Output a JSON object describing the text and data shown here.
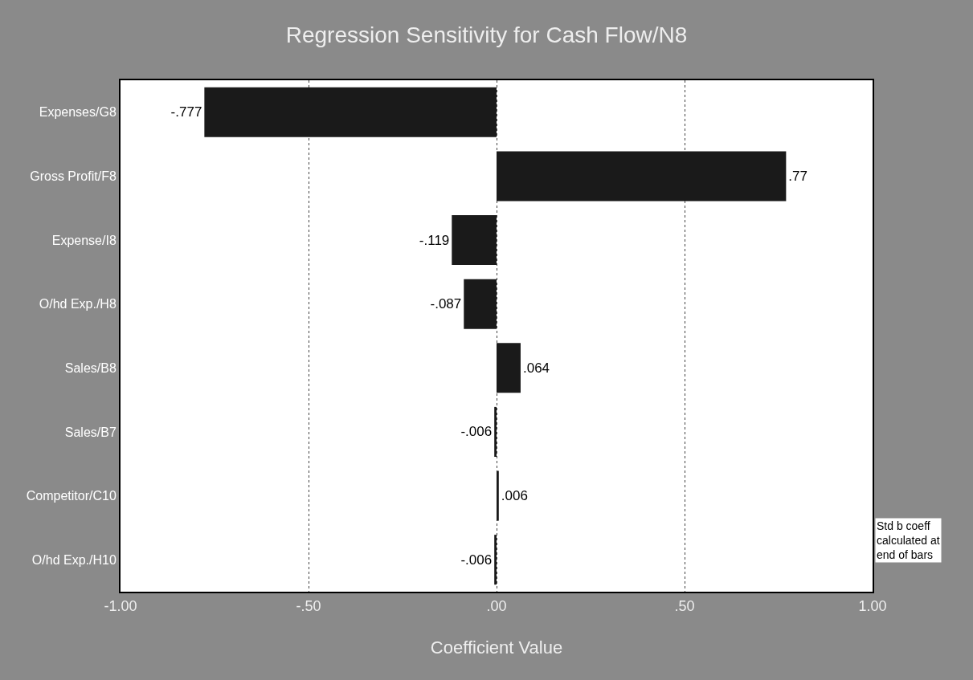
{
  "chart_data": {
    "type": "bar",
    "orientation": "horizontal",
    "title": "Regression Sensitivity for Cash Flow/N8",
    "xlabel": "Coefficient Value",
    "categories": [
      "Expenses/G8",
      "Gross Profit/F8",
      "Expense/I8",
      "O/hd Exp./H8",
      "Sales/B8",
      "Sales/B7",
      "Competitor/C10",
      "O/hd Exp./H10"
    ],
    "values": [
      -0.777,
      0.77,
      -0.119,
      -0.087,
      0.064,
      -0.006,
      0.006,
      -0.006
    ],
    "value_labels": [
      "-.777",
      ".77",
      "-.119",
      "-.087",
      ".064",
      "-.006",
      ".006",
      "-.006"
    ],
    "color": "#1a1a1a",
    "xlim": [
      -1,
      1
    ],
    "xticks": [
      {
        "value": -1,
        "label": "-1.00"
      },
      {
        "value": -0.5,
        "label": "-.50"
      },
      {
        "value": 0,
        "label": ".00"
      },
      {
        "value": 0.5,
        "label": ".50"
      },
      {
        "value": 1,
        "label": "1.00"
      }
    ],
    "grid": "x",
    "annotations": [
      "Std b coeff\ncalculated at\nend of bars"
    ]
  }
}
